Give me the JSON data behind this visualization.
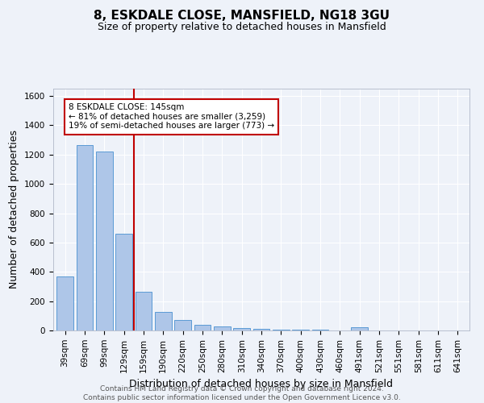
{
  "title": "8, ESKDALE CLOSE, MANSFIELD, NG18 3GU",
  "subtitle": "Size of property relative to detached houses in Mansfield",
  "xlabel": "Distribution of detached houses by size in Mansfield",
  "ylabel": "Number of detached properties",
  "footer_line1": "Contains HM Land Registry data © Crown copyright and database right 2024.",
  "footer_line2": "Contains public sector information licensed under the Open Government Licence v3.0.",
  "categories": [
    "39sqm",
    "69sqm",
    "99sqm",
    "129sqm",
    "159sqm",
    "190sqm",
    "220sqm",
    "250sqm",
    "280sqm",
    "310sqm",
    "340sqm",
    "370sqm",
    "400sqm",
    "430sqm",
    "460sqm",
    "491sqm",
    "521sqm",
    "551sqm",
    "581sqm",
    "611sqm",
    "641sqm"
  ],
  "values": [
    370,
    1265,
    1220,
    660,
    265,
    125,
    70,
    37,
    27,
    15,
    10,
    8,
    7,
    5,
    0,
    20,
    0,
    0,
    0,
    0,
    0
  ],
  "bar_color": "#aec6e8",
  "bar_edge_color": "#5b9bd5",
  "vline_color": "#c00000",
  "annotation_text": "8 ESKDALE CLOSE: 145sqm\n← 81% of detached houses are smaller (3,259)\n19% of semi-detached houses are larger (773) →",
  "annotation_box_color": "#ffffff",
  "annotation_box_edge": "#c00000",
  "ylim": [
    0,
    1650
  ],
  "yticks": [
    0,
    200,
    400,
    600,
    800,
    1000,
    1200,
    1400,
    1600
  ],
  "bg_color": "#eef2f9",
  "grid_color": "#ffffff",
  "title_fontsize": 11,
  "subtitle_fontsize": 9,
  "axis_label_fontsize": 9,
  "tick_fontsize": 7.5,
  "footer_fontsize": 6.5
}
